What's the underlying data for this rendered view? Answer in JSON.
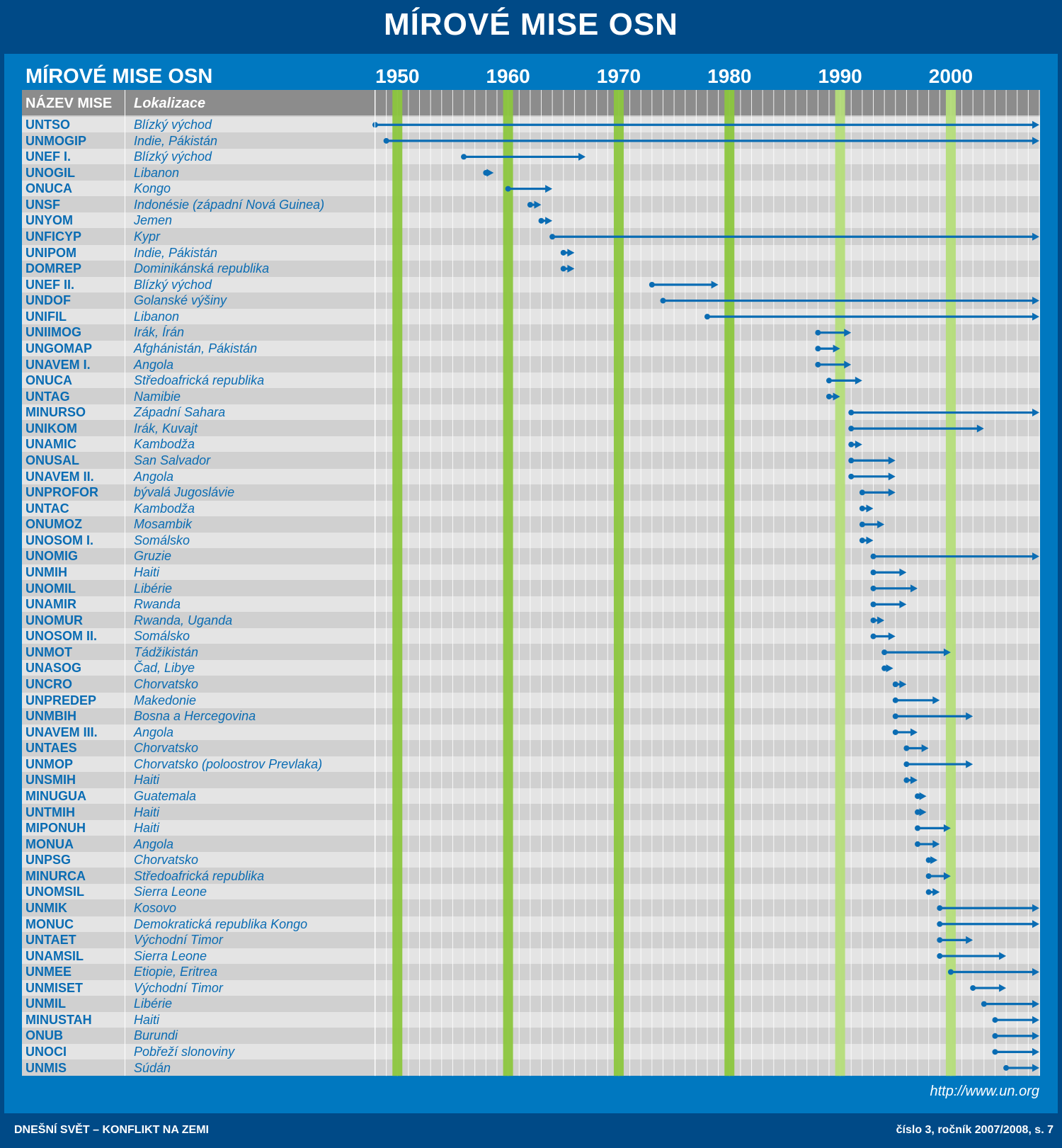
{
  "page": {
    "title": "MÍROVÉ MISE OSN",
    "url": "http://www.un.org",
    "footer_left": "DNEŠNÍ SVĚT – KONFLIKT NA ZEMI",
    "footer_right": "číslo 3, ročník 2007/2008, s. 7"
  },
  "colors": {
    "dark_blue": "#004a87",
    "panel_blue": "#0078c0",
    "text_blue": "#0a6cb3",
    "arrow_blue": "#0a6cb3",
    "green_band": "#8cc63e",
    "light_green_band": "#b5dd7a"
  },
  "chart_data": {
    "type": "table",
    "title": "MÍROVÉ MISE OSN",
    "columns": [
      "NÁZEV MISE",
      "Lokalizace"
    ],
    "x_ticks": [
      1950,
      1960,
      1970,
      1980,
      1990,
      2000
    ],
    "xlim": [
      1948,
      2008
    ],
    "grid": true,
    "missions": [
      {
        "name": "UNTSO",
        "location": "Blízký východ",
        "start": 1948,
        "end": 2008
      },
      {
        "name": "UNMOGIP",
        "location": "Indie, Pákistán",
        "start": 1949,
        "end": 2008
      },
      {
        "name": "UNEF I.",
        "location": "Blízký východ",
        "start": 1956,
        "end": 1967
      },
      {
        "name": "UNOGIL",
        "location": "Libanon",
        "start": 1958,
        "end": 1958.7
      },
      {
        "name": "ONUCA",
        "location": "Kongo",
        "start": 1960,
        "end": 1964
      },
      {
        "name": "UNSF",
        "location": "Indonésie (západní Nová Guinea)",
        "start": 1962,
        "end": 1963
      },
      {
        "name": "UNYOM",
        "location": "Jemen",
        "start": 1963,
        "end": 1964
      },
      {
        "name": "UNFICYP",
        "location": "Kypr",
        "start": 1964,
        "end": 2008
      },
      {
        "name": "UNIPOM",
        "location": "Indie, Pákistán",
        "start": 1965,
        "end": 1966
      },
      {
        "name": "DOMREP",
        "location": "Dominikánská republika",
        "start": 1965,
        "end": 1966
      },
      {
        "name": "UNEF II.",
        "location": "Blízký východ",
        "start": 1973,
        "end": 1979
      },
      {
        "name": "UNDOF",
        "location": "Golanské výšiny",
        "start": 1974,
        "end": 2008
      },
      {
        "name": "UNIFIL",
        "location": "Libanon",
        "start": 1978,
        "end": 2008
      },
      {
        "name": "UNIIMOG",
        "location": "Irák, Írán",
        "start": 1988,
        "end": 1991
      },
      {
        "name": "UNGOMAP",
        "location": "Afghánistán, Pákistán",
        "start": 1988,
        "end": 1990
      },
      {
        "name": "UNAVEM I.",
        "location": "Angola",
        "start": 1988,
        "end": 1991
      },
      {
        "name": "ONUCA",
        "location": "Středoafrická republika",
        "start": 1989,
        "end": 1992
      },
      {
        "name": "UNTAG",
        "location": "Namibie",
        "start": 1989,
        "end": 1990
      },
      {
        "name": "MINURSO",
        "location": "Západní Sahara",
        "start": 1991,
        "end": 2008
      },
      {
        "name": "UNIKOM",
        "location": "Irák, Kuvajt",
        "start": 1991,
        "end": 2003
      },
      {
        "name": "UNAMIC",
        "location": "Kambodža",
        "start": 1991,
        "end": 1992
      },
      {
        "name": "ONUSAL",
        "location": "San Salvador",
        "start": 1991,
        "end": 1995
      },
      {
        "name": "UNAVEM II.",
        "location": "Angola",
        "start": 1991,
        "end": 1995
      },
      {
        "name": "UNPROFOR",
        "location": "bývalá Jugoslávie",
        "start": 1992,
        "end": 1995
      },
      {
        "name": "UNTAC",
        "location": "Kambodža",
        "start": 1992,
        "end": 1993
      },
      {
        "name": "ONUMOZ",
        "location": "Mosambik",
        "start": 1992,
        "end": 1994
      },
      {
        "name": "UNOSOM I.",
        "location": "Somálsko",
        "start": 1992,
        "end": 1993
      },
      {
        "name": "UNOMIG",
        "location": "Gruzie",
        "start": 1993,
        "end": 2008
      },
      {
        "name": "UNMIH",
        "location": "Haiti",
        "start": 1993,
        "end": 1996
      },
      {
        "name": "UNOMIL",
        "location": "Libérie",
        "start": 1993,
        "end": 1997
      },
      {
        "name": "UNAMIR",
        "location": "Rwanda",
        "start": 1993,
        "end": 1996
      },
      {
        "name": "UNOMUR",
        "location": "Rwanda, Uganda",
        "start": 1993,
        "end": 1994
      },
      {
        "name": "UNOSOM II.",
        "location": "Somálsko",
        "start": 1993,
        "end": 1995
      },
      {
        "name": "UNMOT",
        "location": "Tádžikistán",
        "start": 1994,
        "end": 2000
      },
      {
        "name": "UNASOG",
        "location": "Čad, Libye",
        "start": 1994,
        "end": 1994.8
      },
      {
        "name": "UNCRO",
        "location": "Chorvatsko",
        "start": 1995,
        "end": 1996
      },
      {
        "name": "UNPREDEP",
        "location": "Makedonie",
        "start": 1995,
        "end": 1999
      },
      {
        "name": "UNMBIH",
        "location": "Bosna a Hercegovina",
        "start": 1995,
        "end": 2002
      },
      {
        "name": "UNAVEM III.",
        "location": "Angola",
        "start": 1995,
        "end": 1997
      },
      {
        "name": "UNTAES",
        "location": "Chorvatsko",
        "start": 1996,
        "end": 1998
      },
      {
        "name": "UNMOP",
        "location": "Chorvatsko (poloostrov Prevlaka)",
        "start": 1996,
        "end": 2002
      },
      {
        "name": "UNSMIH",
        "location": "Haiti",
        "start": 1996,
        "end": 1997
      },
      {
        "name": "MINUGUA",
        "location": "Guatemala",
        "start": 1997,
        "end": 1997.8
      },
      {
        "name": "UNTMIH",
        "location": "Haiti",
        "start": 1997,
        "end": 1997.8
      },
      {
        "name": "MIPONUH",
        "location": "Haiti",
        "start": 1997,
        "end": 2000
      },
      {
        "name": "MONUA",
        "location": "Angola",
        "start": 1997,
        "end": 1999
      },
      {
        "name": "UNPSG",
        "location": "Chorvatsko",
        "start": 1998,
        "end": 1998.8
      },
      {
        "name": "MINURCA",
        "location": "Středoafrická republika",
        "start": 1998,
        "end": 2000
      },
      {
        "name": "UNOMSIL",
        "location": "Sierra Leone",
        "start": 1998,
        "end": 1999
      },
      {
        "name": "UNMIK",
        "location": "Kosovo",
        "start": 1999,
        "end": 2008
      },
      {
        "name": "MONUC",
        "location": "Demokratická republika Kongo",
        "start": 1999,
        "end": 2008
      },
      {
        "name": "UNTAET",
        "location": "Východní Timor",
        "start": 1999,
        "end": 2002
      },
      {
        "name": "UNAMSIL",
        "location": "Sierra Leone",
        "start": 1999,
        "end": 2005
      },
      {
        "name": "UNMEE",
        "location": "Etiopie, Eritrea",
        "start": 2000,
        "end": 2008
      },
      {
        "name": "UNMISET",
        "location": "Východní Timor",
        "start": 2002,
        "end": 2005
      },
      {
        "name": "UNMIL",
        "location": "Libérie",
        "start": 2003,
        "end": 2008
      },
      {
        "name": "MINUSTAH",
        "location": "Haiti",
        "start": 2004,
        "end": 2008
      },
      {
        "name": "ONUB",
        "location": "Burundi",
        "start": 2004,
        "end": 2008
      },
      {
        "name": "UNOCI",
        "location": "Pobřeží slonoviny",
        "start": 2004,
        "end": 2008
      },
      {
        "name": "UNMIS",
        "location": "Súdán",
        "start": 2005,
        "end": 2008
      }
    ]
  }
}
